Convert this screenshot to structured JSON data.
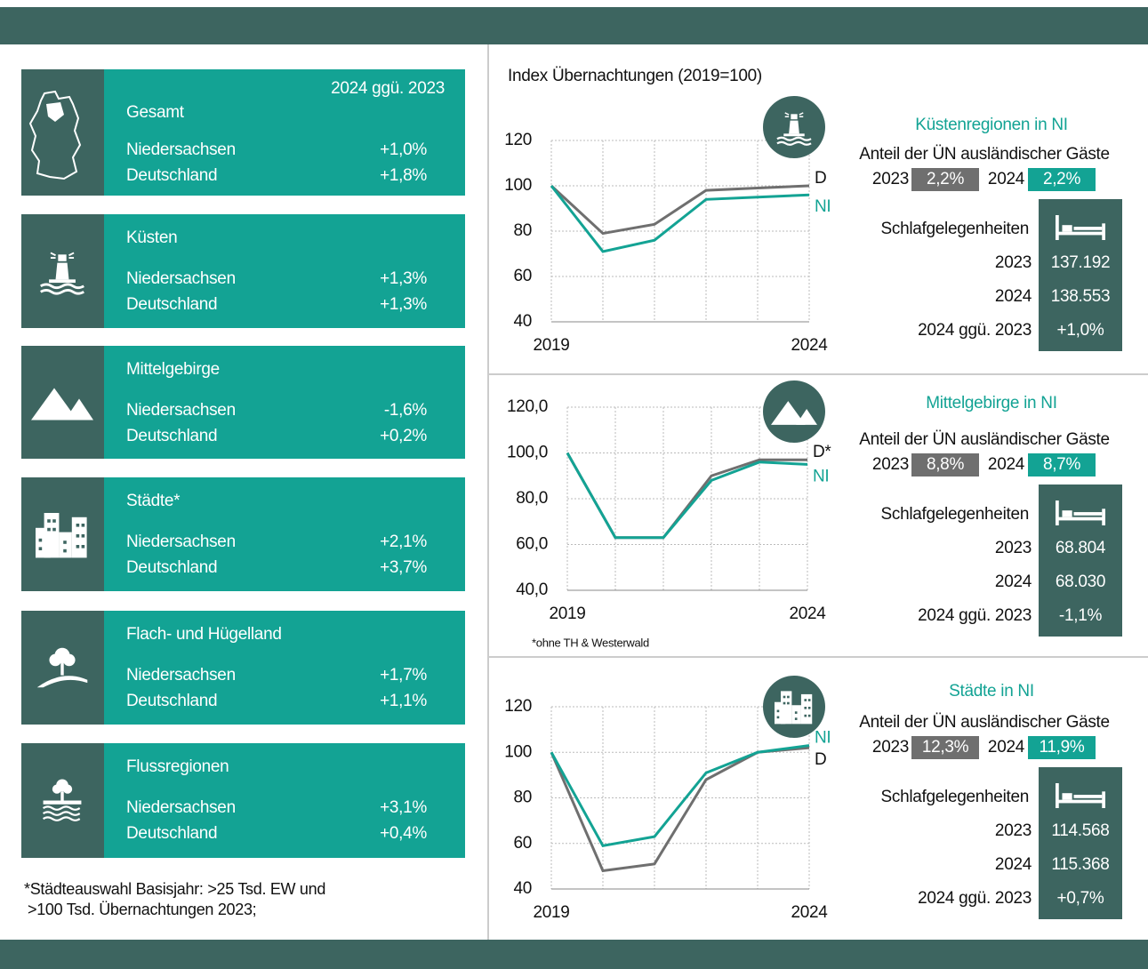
{
  "cards_header": "2024 ggü. 2023",
  "cards": [
    {
      "title": "Gesamt",
      "rows": [
        {
          "label": "Niedersachsen",
          "value": "+1,0%"
        },
        {
          "label": "Deutschland",
          "value": "+1,8%"
        }
      ]
    },
    {
      "title": "Küsten",
      "rows": [
        {
          "label": "Niedersachsen",
          "value": "+1,3%"
        },
        {
          "label": "Deutschland",
          "value": "+1,3%"
        }
      ]
    },
    {
      "title": "Mittelgebirge",
      "rows": [
        {
          "label": "Niedersachsen",
          "value": "-1,6%"
        },
        {
          "label": "Deutschland",
          "value": "+0,2%"
        }
      ]
    },
    {
      "title": "Städte*",
      "rows": [
        {
          "label": "Niedersachsen",
          "value": "+2,1%"
        },
        {
          "label": "Deutschland",
          "value": "+3,7%"
        }
      ]
    },
    {
      "title": "Flach- und Hügelland",
      "rows": [
        {
          "label": "Niedersachsen",
          "value": "+1,7%"
        },
        {
          "label": "Deutschland",
          "value": "+1,1%"
        }
      ]
    },
    {
      "title": "Flussregionen",
      "rows": [
        {
          "label": "Niedersachsen",
          "value": "+3,1%"
        },
        {
          "label": "Deutschland",
          "value": "+0,4%"
        }
      ]
    }
  ],
  "footnote": [
    "*Städteauswahl Basisjahr:  >25 Tsd. EW und",
    ">100 Tsd. Übernachtungen 2023;"
  ],
  "index_title": "Index Übernachtungen (2019=100)",
  "chart_note": "*ohne TH & Westerwald",
  "chart_data": [
    {
      "type": "line",
      "categories": [
        "2019",
        null,
        null,
        null,
        null,
        "2024"
      ],
      "series": [
        {
          "name": "D",
          "color": "#6f6f6f",
          "values": [
            100,
            79,
            83,
            98,
            99,
            100
          ]
        },
        {
          "name": "NI",
          "color": "#13a394",
          "values": [
            100,
            71,
            76,
            94,
            95,
            96
          ]
        }
      ],
      "ylim": [
        40,
        120
      ],
      "yticks": [
        40,
        60,
        80,
        100,
        120
      ],
      "grid": true
    },
    {
      "type": "line",
      "categories": [
        "2019",
        null,
        null,
        null,
        null,
        "2024"
      ],
      "series": [
        {
          "name": "D*",
          "color": "#6f6f6f",
          "values": [
            100,
            63,
            63,
            90,
            97,
            97
          ]
        },
        {
          "name": "NI",
          "color": "#13a394",
          "values": [
            100,
            63,
            63,
            88,
            96,
            95
          ]
        }
      ],
      "ylim": [
        40,
        120
      ],
      "yticks": [
        {
          "value": 40,
          "label": "40,0"
        },
        {
          "value": 60,
          "label": "60,0"
        },
        {
          "value": 80,
          "label": "80,0"
        },
        {
          "value": 100,
          "label": "100,0"
        },
        {
          "value": 120,
          "label": "120,0"
        }
      ],
      "grid": true
    },
    {
      "type": "line",
      "categories": [
        "2019",
        null,
        null,
        null,
        null,
        "2024"
      ],
      "series": [
        {
          "name": "D",
          "color": "#6f6f6f",
          "values": [
            100,
            48,
            51,
            88,
            100,
            102
          ]
        },
        {
          "name": "NI",
          "color": "#13a394",
          "values": [
            100,
            59,
            63,
            91,
            100,
            103
          ]
        }
      ],
      "ylim": [
        40,
        120
      ],
      "yticks": [
        40,
        60,
        80,
        100,
        120
      ],
      "grid": true
    }
  ],
  "panels": [
    {
      "title": "Küstenregionen in NI",
      "share_label": "Anteil der ÜN ausländischer Gäste",
      "share": [
        {
          "year": "2023",
          "value": "2,2%"
        },
        {
          "year": "2024",
          "value": "2,2%"
        }
      ],
      "beds_label": "Schlafgelegenheiten",
      "beds": [
        {
          "label": "2023",
          "value": "137.192"
        },
        {
          "label": "2024",
          "value": "138.553"
        },
        {
          "label": "2024 ggü. 2023",
          "value": "+1,0%"
        }
      ]
    },
    {
      "title": "Mittelgebirge in NI",
      "share_label": "Anteil der ÜN ausländischer Gäste",
      "share": [
        {
          "year": "2023",
          "value": "8,8%"
        },
        {
          "year": "2024",
          "value": "8,7%"
        }
      ],
      "beds_label": "Schlafgelegenheiten",
      "beds": [
        {
          "label": "2023",
          "value": "68.804"
        },
        {
          "label": "2024",
          "value": "68.030"
        },
        {
          "label": "2024 ggü. 2023",
          "value": "-1,1%"
        }
      ]
    },
    {
      "title": "Städte in NI",
      "share_label": "Anteil der ÜN ausländischer Gäste",
      "share": [
        {
          "year": "2023",
          "value": "12,3%"
        },
        {
          "year": "2024",
          "value": "11,9%"
        }
      ],
      "beds_label": "Schlafgelegenheiten",
      "beds": [
        {
          "label": "2023",
          "value": "114.568"
        },
        {
          "label": "2024",
          "value": "115.368"
        },
        {
          "label": "2024 ggü. 2023",
          "value": "+0,7%"
        }
      ]
    }
  ]
}
